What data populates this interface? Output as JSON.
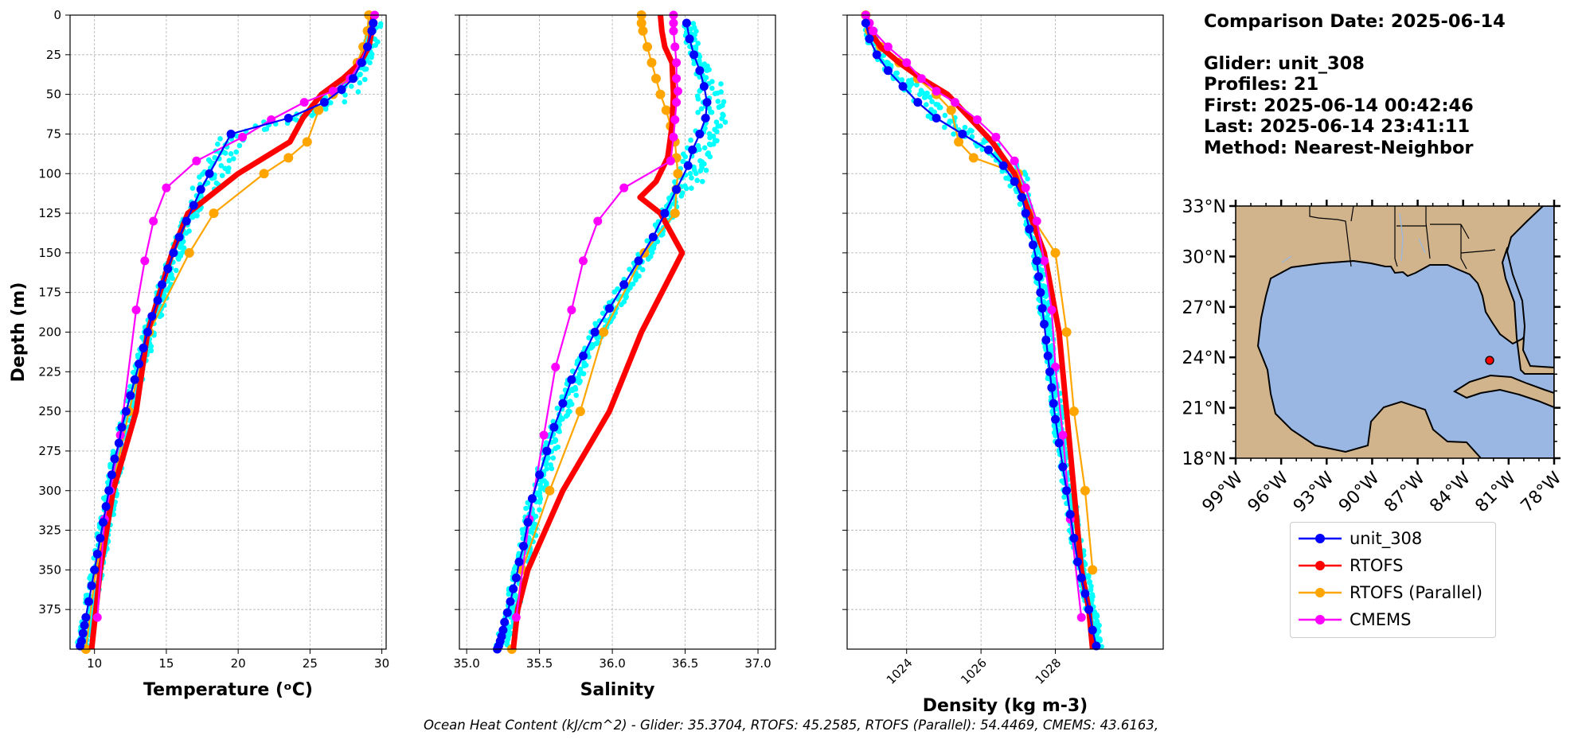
{
  "info": {
    "comparison_date": "Comparison Date: 2025-06-14",
    "glider": "Glider: unit_308",
    "profiles": "Profiles: 21",
    "first": "First: 2025-06-14 00:42:46",
    "last": "Last: 2025-06-14 23:41:11",
    "method": "Method: Nearest-Neighbor"
  },
  "footer": "Ocean Heat Content (kJ/cm^2) - Glider: 35.3704,  RTOFS: 45.2585,  RTOFS (Parallel): 54.4469,  CMEMS: 43.6163,",
  "colors": {
    "glider": "#0000ff",
    "rtofs": "#ff0000",
    "rtofs_parallel": "#ffa500",
    "cmems": "#ff00ff",
    "glider_scatter": "#00ffff",
    "land": "#d2b48c",
    "ocean": "#99b7e2"
  },
  "legend": [
    {
      "label": "unit_308",
      "color": "#0000ff"
    },
    {
      "label": "RTOFS",
      "color": "#ff0000"
    },
    {
      "label": "RTOFS (Parallel)",
      "color": "#ffa500"
    },
    {
      "label": "CMEMS",
      "color": "#ff00ff"
    }
  ],
  "chart_data": [
    {
      "type": "line",
      "xlabel": "Temperature (ᵒC)",
      "ylabel": "Depth (m)",
      "xlim": [
        8.3,
        30.3
      ],
      "ylim": [
        400,
        0
      ],
      "y_inverted": true,
      "xticks": [
        10,
        15,
        20,
        25,
        30
      ],
      "yticks": [
        0,
        25,
        50,
        75,
        100,
        125,
        150,
        175,
        200,
        225,
        250,
        275,
        300,
        325,
        350,
        375
      ],
      "grid": true,
      "series": [
        {
          "name": "unit_308",
          "x": [
            29.4,
            29.3,
            29.0,
            28.6,
            28.0,
            27.2,
            26.0,
            23.5,
            19.5,
            18.0,
            17.4,
            16.9,
            16.4,
            15.9,
            15.5,
            15.1,
            14.7,
            14.4,
            14.0,
            13.7,
            13.4,
            13.1,
            12.8,
            12.5,
            12.2,
            11.9,
            11.7,
            11.4,
            11.2,
            11.0,
            10.8,
            10.6,
            10.4,
            10.2,
            10.0,
            9.8,
            9.6,
            9.4,
            9.3,
            9.2,
            9.1,
            9.0
          ],
          "y": [
            5,
            10,
            20,
            30,
            40,
            47,
            55,
            65,
            75,
            100,
            110,
            120,
            130,
            140,
            150,
            160,
            170,
            180,
            190,
            200,
            210,
            220,
            230,
            240,
            250,
            260,
            270,
            280,
            290,
            300,
            310,
            320,
            330,
            340,
            350,
            360,
            370,
            380,
            385,
            390,
            395,
            398
          ]
        },
        {
          "name": "RTOFS",
          "x": [
            29.4,
            29.3,
            29.1,
            28.5,
            27.3,
            25.8,
            24.5,
            23.6,
            20.0,
            16.5,
            15.4,
            13.7,
            12.9,
            11.3,
            10.4,
            9.8
          ],
          "y": [
            0,
            10,
            20,
            30,
            40,
            50,
            65,
            80,
            100,
            125,
            150,
            200,
            250,
            300,
            350,
            400
          ]
        },
        {
          "name": "RTOFS (Parallel)",
          "x": [
            29.1,
            29.0,
            28.7,
            28.3,
            27.6,
            26.6,
            25.6,
            24.8,
            23.5,
            21.8,
            18.3,
            16.6,
            13.8,
            12.4,
            11.2,
            10.1,
            9.4
          ],
          "y": [
            0,
            10,
            20,
            30,
            40,
            50,
            60,
            80,
            90,
            100,
            125,
            150,
            200,
            250,
            300,
            350,
            400
          ]
        },
        {
          "name": "CMEMS",
          "x": [
            29.5,
            29.4,
            29.3,
            29.0,
            28.5,
            27.8,
            26.6,
            24.6,
            22.3,
            20.3,
            17.1,
            15.0,
            14.1,
            13.5,
            12.9,
            11.8,
            11.1,
            10.7,
            10.2
          ],
          "y": [
            0,
            5,
            10,
            20,
            30,
            40,
            48,
            55,
            66,
            77,
            92,
            109,
            130,
            155,
            186,
            265,
            300,
            318,
            380
          ]
        }
      ]
    },
    {
      "type": "line",
      "xlabel": "Salinity",
      "ylabel": "",
      "xlim": [
        34.95,
        37.12
      ],
      "ylim": [
        400,
        0
      ],
      "y_inverted": true,
      "xticks": [
        35.0,
        35.5,
        36.0,
        36.5,
        37.0
      ],
      "grid": true,
      "series": [
        {
          "name": "unit_308",
          "x": [
            36.51,
            36.53,
            36.56,
            36.6,
            36.63,
            36.65,
            36.64,
            36.6,
            36.55,
            36.52,
            36.44,
            36.36,
            36.28,
            36.18,
            36.08,
            35.98,
            35.88,
            35.8,
            35.72,
            35.66,
            35.6,
            35.55,
            35.5,
            35.45,
            35.42,
            35.39,
            35.36,
            35.34,
            35.32,
            35.3,
            35.28,
            35.26,
            35.25,
            35.24,
            35.23,
            35.22,
            35.21
          ],
          "y": [
            5,
            15,
            25,
            35,
            45,
            55,
            65,
            75,
            85,
            95,
            110,
            125,
            140,
            155,
            170,
            185,
            200,
            215,
            230,
            245,
            260,
            275,
            290,
            305,
            320,
            335,
            345,
            355,
            362,
            370,
            377,
            383,
            388,
            392,
            395,
            398,
            400
          ]
        },
        {
          "name": "RTOFS",
          "x": [
            36.33,
            36.34,
            36.36,
            36.41,
            36.42,
            36.41,
            36.38,
            36.3,
            36.19,
            36.33,
            36.48,
            36.2,
            35.98,
            35.66,
            35.42,
            35.35,
            35.32
          ],
          "y": [
            0,
            10,
            20,
            30,
            50,
            70,
            90,
            105,
            115,
            125,
            150,
            200,
            250,
            300,
            350,
            375,
            400
          ]
        },
        {
          "name": "RTOFS (Parallel)",
          "x": [
            36.2,
            36.2,
            36.21,
            36.24,
            36.27,
            36.3,
            36.33,
            36.37,
            36.4,
            36.43,
            36.44,
            36.45,
            36.44,
            36.43,
            36.22,
            35.94,
            35.78,
            35.57,
            35.38,
            35.31
          ],
          "y": [
            0,
            5,
            10,
            20,
            30,
            40,
            50,
            60,
            70,
            80,
            90,
            100,
            110,
            125,
            150,
            200,
            250,
            300,
            350,
            400
          ]
        },
        {
          "name": "CMEMS",
          "x": [
            36.42,
            36.42,
            36.42,
            36.43,
            36.44,
            36.44,
            36.45,
            36.44,
            36.43,
            36.42,
            36.4,
            36.08,
            35.9,
            35.8,
            35.72,
            35.61,
            35.53,
            35.43,
            35.34
          ],
          "y": [
            0,
            5,
            10,
            20,
            30,
            40,
            48,
            55,
            66,
            77,
            92,
            109,
            130,
            155,
            186,
            222,
            265,
            318,
            380
          ]
        }
      ]
    },
    {
      "type": "line",
      "xlabel": "Density (kg m-3)",
      "ylabel": "",
      "xlim": [
        1022.4,
        1030.9
      ],
      "ylim": [
        400,
        0
      ],
      "y_inverted": true,
      "xticks": [
        1024,
        1026,
        1028
      ],
      "grid": true,
      "series": [
        {
          "name": "unit_308",
          "x": [
            1022.9,
            1023.0,
            1023.2,
            1023.5,
            1023.9,
            1024.3,
            1024.8,
            1025.5,
            1026.2,
            1026.6,
            1026.9,
            1027.1,
            1027.2,
            1027.3,
            1027.4,
            1027.5,
            1027.55,
            1027.6,
            1027.65,
            1027.7,
            1027.75,
            1027.8,
            1027.85,
            1027.9,
            1027.95,
            1028.0,
            1028.1,
            1028.2,
            1028.3,
            1028.4,
            1028.5,
            1028.6,
            1028.7,
            1028.8,
            1028.9,
            1029.0,
            1029.1
          ],
          "y": [
            5,
            15,
            25,
            35,
            45,
            55,
            65,
            75,
            85,
            95,
            105,
            115,
            125,
            135,
            145,
            155,
            165,
            175,
            185,
            195,
            205,
            215,
            225,
            235,
            245,
            255,
            270,
            285,
            300,
            315,
            330,
            345,
            355,
            365,
            375,
            388,
            398
          ]
        },
        {
          "name": "RTOFS",
          "x": [
            1022.9,
            1023.0,
            1023.3,
            1023.8,
            1024.4,
            1025.1,
            1025.7,
            1026.3,
            1026.9,
            1027.3,
            1027.7,
            1028.1,
            1028.3,
            1028.5,
            1028.7,
            1028.9,
            1029.0
          ],
          "y": [
            0,
            10,
            20,
            30,
            40,
            50,
            65,
            80,
            100,
            125,
            150,
            200,
            250,
            300,
            350,
            375,
            400
          ]
        },
        {
          "name": "RTOFS (Parallel)",
          "x": [
            1022.9,
            1023.0,
            1023.3,
            1023.8,
            1024.3,
            1024.8,
            1025.2,
            1025.4,
            1025.8,
            1027.0,
            1027.3,
            1028.0,
            1028.3,
            1028.5,
            1028.8,
            1029.0
          ],
          "y": [
            0,
            10,
            20,
            30,
            40,
            50,
            60,
            80,
            90,
            100,
            125,
            150,
            200,
            250,
            300,
            350
          ]
        },
        {
          "name": "CMEMS",
          "x": [
            1022.9,
            1023.0,
            1023.1,
            1023.5,
            1024.0,
            1024.4,
            1024.8,
            1025.3,
            1025.9,
            1026.4,
            1026.9,
            1027.2,
            1027.5,
            1027.7,
            1027.9,
            1028.0,
            1028.2,
            1028.4,
            1028.7
          ],
          "y": [
            0,
            5,
            10,
            20,
            30,
            40,
            48,
            55,
            66,
            77,
            92,
            109,
            130,
            155,
            186,
            222,
            265,
            318,
            380
          ]
        }
      ]
    },
    {
      "type": "map",
      "lat_ticks": [
        "33°N",
        "30°N",
        "27°N",
        "24°N",
        "21°N",
        "18°N"
      ],
      "lon_ticks": [
        "99°W",
        "96°W",
        "93°W",
        "90°W",
        "87°W",
        "84°W",
        "81°W",
        "78°W"
      ],
      "lat_range": [
        18,
        33
      ],
      "lon_range": [
        -99,
        -78
      ],
      "glider_location": {
        "lat": 24.1,
        "lon": -82.4
      }
    }
  ]
}
